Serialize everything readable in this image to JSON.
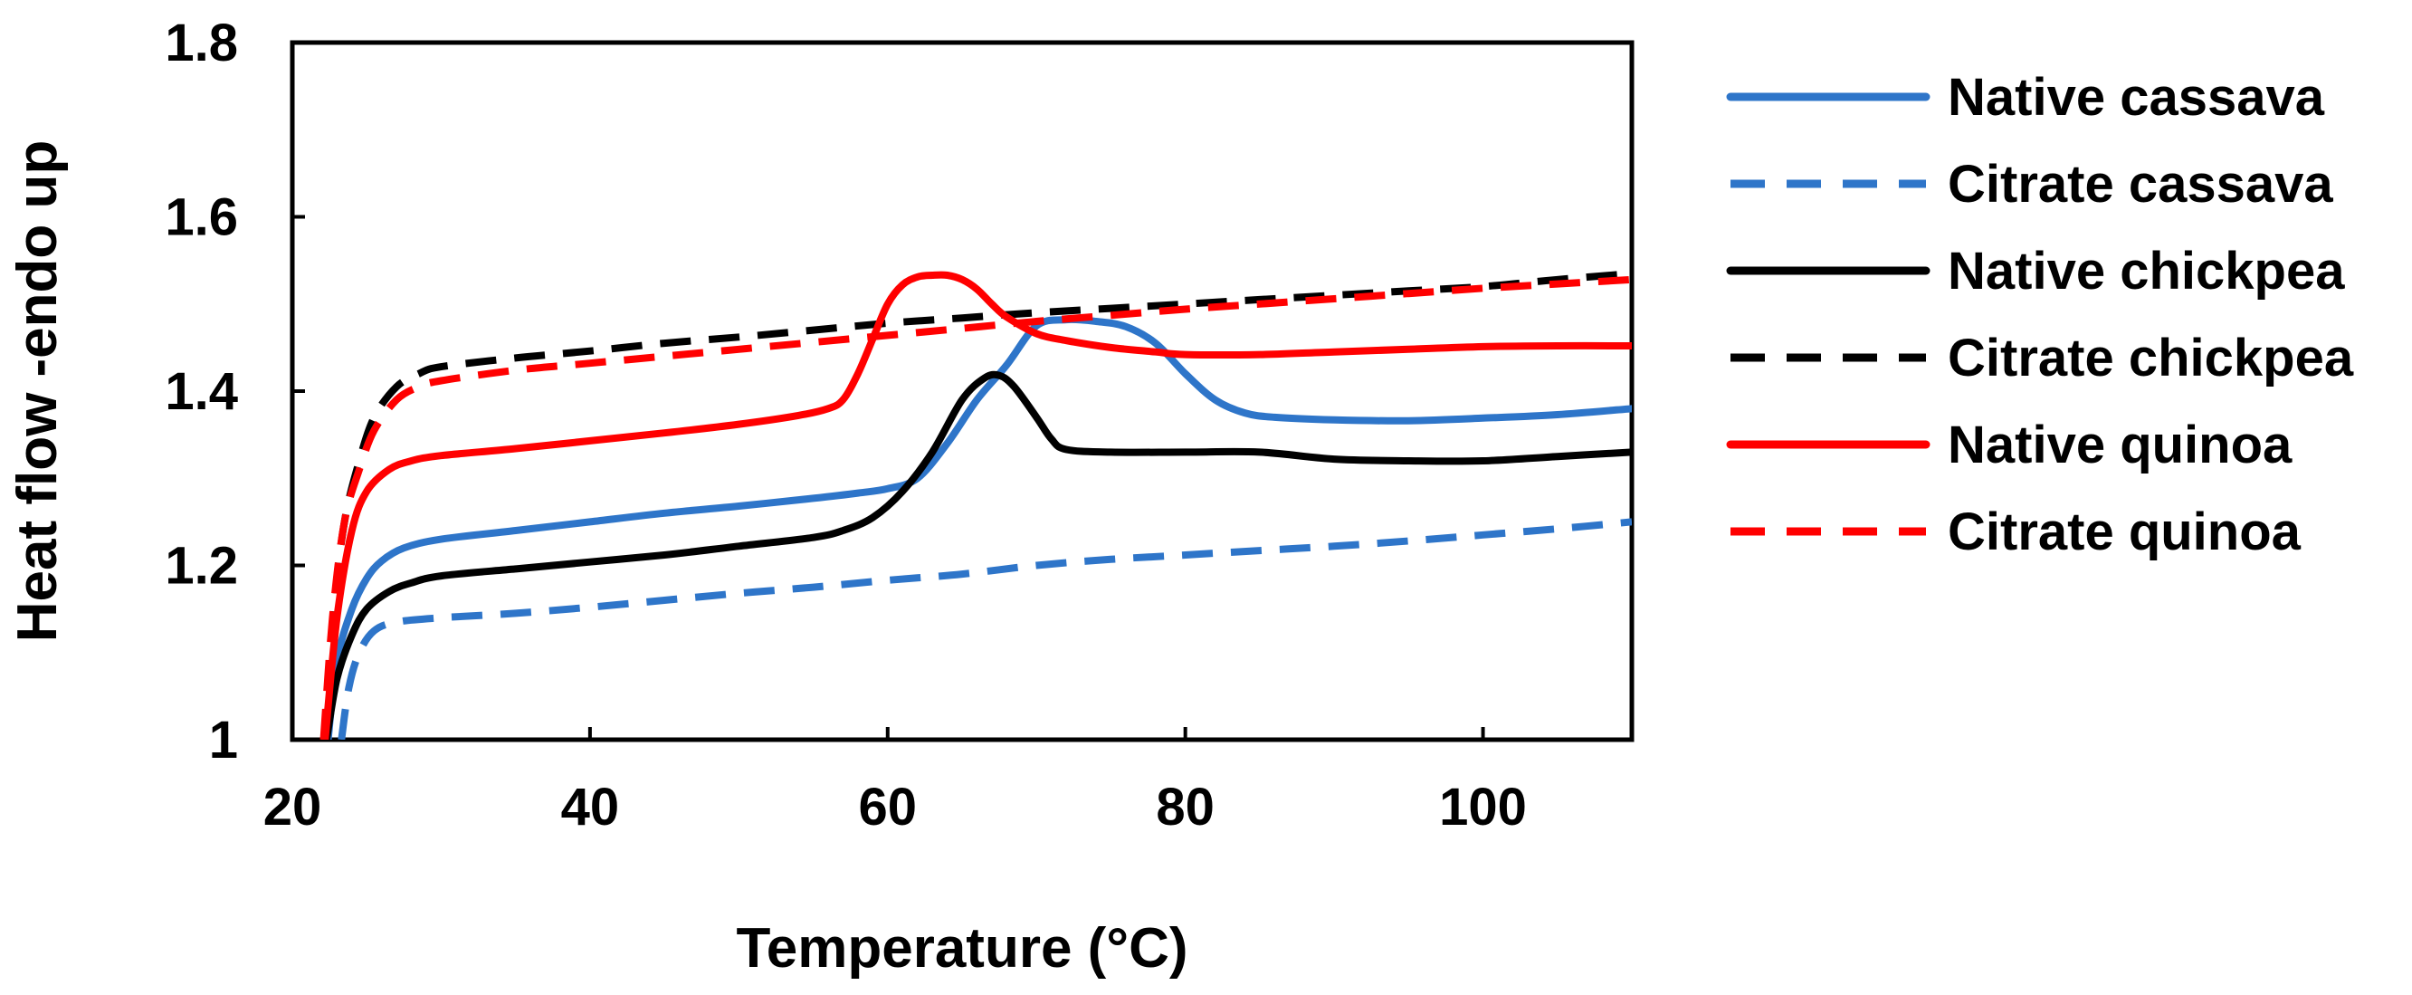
{
  "chart_data": {
    "type": "line",
    "title": "",
    "xlabel": "Temperature (°C)",
    "ylabel": "Heat flow -endo up",
    "xlim": [
      20,
      110
    ],
    "ylim": [
      1,
      1.8
    ],
    "xticks": [
      20,
      40,
      60,
      80,
      100
    ],
    "xtick_labels": [
      "20",
      "40",
      "60",
      "80",
      "100"
    ],
    "yticks": [
      1,
      1.2,
      1.4,
      1.6,
      1.8
    ],
    "ytick_labels": [
      "1",
      "1.2",
      "1.4",
      "1.6",
      "1.8"
    ],
    "grid": false,
    "legend_position": "right",
    "series": [
      {
        "name": "Native cassava",
        "color": "#2E75C9",
        "dash": "solid",
        "points": [
          [
            22.4,
            1.0
          ],
          [
            23.0,
            1.09
          ],
          [
            24.0,
            1.15
          ],
          [
            25.0,
            1.185
          ],
          [
            26.0,
            1.205
          ],
          [
            27.5,
            1.22
          ],
          [
            30,
            1.23
          ],
          [
            35,
            1.24
          ],
          [
            40,
            1.25
          ],
          [
            45,
            1.26
          ],
          [
            50,
            1.268
          ],
          [
            55,
            1.277
          ],
          [
            58,
            1.283
          ],
          [
            60,
            1.288
          ],
          [
            62,
            1.3
          ],
          [
            64,
            1.34
          ],
          [
            66,
            1.39
          ],
          [
            68,
            1.43
          ],
          [
            70,
            1.475
          ],
          [
            72,
            1.482
          ],
          [
            74,
            1.48
          ],
          [
            76,
            1.474
          ],
          [
            78,
            1.455
          ],
          [
            80,
            1.42
          ],
          [
            82,
            1.39
          ],
          [
            84,
            1.375
          ],
          [
            86,
            1.37
          ],
          [
            90,
            1.367
          ],
          [
            95,
            1.366
          ],
          [
            100,
            1.369
          ],
          [
            105,
            1.373
          ],
          [
            110,
            1.38
          ]
        ]
      },
      {
        "name": "Citrate cassava",
        "color": "#2E75C9",
        "dash": "dashed",
        "points": [
          [
            23.3,
            1.0
          ],
          [
            23.8,
            1.06
          ],
          [
            24.5,
            1.1
          ],
          [
            25.5,
            1.125
          ],
          [
            27,
            1.135
          ],
          [
            30,
            1.14
          ],
          [
            35,
            1.145
          ],
          [
            40,
            1.152
          ],
          [
            45,
            1.16
          ],
          [
            50,
            1.168
          ],
          [
            55,
            1.175
          ],
          [
            60,
            1.183
          ],
          [
            65,
            1.19
          ],
          [
            70,
            1.2
          ],
          [
            75,
            1.207
          ],
          [
            80,
            1.212
          ],
          [
            85,
            1.217
          ],
          [
            90,
            1.222
          ],
          [
            95,
            1.228
          ],
          [
            100,
            1.235
          ],
          [
            105,
            1.242
          ],
          [
            110,
            1.25
          ]
        ]
      },
      {
        "name": "Native chickpea",
        "color": "#000000",
        "dash": "solid",
        "points": [
          [
            22.3,
            1.0
          ],
          [
            23.0,
            1.07
          ],
          [
            24.0,
            1.12
          ],
          [
            25.0,
            1.15
          ],
          [
            26.5,
            1.17
          ],
          [
            28,
            1.18
          ],
          [
            30,
            1.188
          ],
          [
            35,
            1.196
          ],
          [
            40,
            1.204
          ],
          [
            45,
            1.212
          ],
          [
            50,
            1.222
          ],
          [
            55,
            1.232
          ],
          [
            57,
            1.24
          ],
          [
            59,
            1.255
          ],
          [
            61,
            1.285
          ],
          [
            63,
            1.33
          ],
          [
            65,
            1.39
          ],
          [
            66.5,
            1.415
          ],
          [
            67.5,
            1.418
          ],
          [
            68.5,
            1.405
          ],
          [
            70,
            1.37
          ],
          [
            71,
            1.345
          ],
          [
            72,
            1.333
          ],
          [
            75,
            1.33
          ],
          [
            80,
            1.33
          ],
          [
            85,
            1.33
          ],
          [
            90,
            1.322
          ],
          [
            95,
            1.32
          ],
          [
            100,
            1.32
          ],
          [
            105,
            1.325
          ],
          [
            110,
            1.33
          ]
        ]
      },
      {
        "name": "Citrate chickpea",
        "color": "#000000",
        "dash": "dashed",
        "points": [
          [
            22.2,
            1.0
          ],
          [
            22.8,
            1.15
          ],
          [
            23.5,
            1.25
          ],
          [
            24.5,
            1.32
          ],
          [
            25.5,
            1.37
          ],
          [
            27,
            1.405
          ],
          [
            28.5,
            1.42
          ],
          [
            30,
            1.428
          ],
          [
            35,
            1.438
          ],
          [
            40,
            1.446
          ],
          [
            45,
            1.455
          ],
          [
            50,
            1.462
          ],
          [
            55,
            1.47
          ],
          [
            60,
            1.478
          ],
          [
            65,
            1.484
          ],
          [
            70,
            1.49
          ],
          [
            75,
            1.495
          ],
          [
            80,
            1.5
          ],
          [
            85,
            1.505
          ],
          [
            90,
            1.51
          ],
          [
            95,
            1.515
          ],
          [
            100,
            1.52
          ],
          [
            105,
            1.528
          ],
          [
            110,
            1.535
          ]
        ]
      },
      {
        "name": "Native quinoa",
        "color": "#FF0000",
        "dash": "solid",
        "points": [
          [
            22.2,
            1.0
          ],
          [
            23.0,
            1.14
          ],
          [
            24.0,
            1.24
          ],
          [
            25.0,
            1.285
          ],
          [
            26.5,
            1.31
          ],
          [
            28,
            1.32
          ],
          [
            30,
            1.326
          ],
          [
            35,
            1.334
          ],
          [
            40,
            1.343
          ],
          [
            45,
            1.352
          ],
          [
            50,
            1.362
          ],
          [
            54,
            1.372
          ],
          [
            56,
            1.38
          ],
          [
            57,
            1.39
          ],
          [
            58,
            1.42
          ],
          [
            59,
            1.46
          ],
          [
            60,
            1.5
          ],
          [
            61,
            1.522
          ],
          [
            62,
            1.531
          ],
          [
            63,
            1.533
          ],
          [
            64,
            1.533
          ],
          [
            65,
            1.528
          ],
          [
            66,
            1.517
          ],
          [
            67,
            1.5
          ],
          [
            68,
            1.485
          ],
          [
            70,
            1.466
          ],
          [
            72,
            1.458
          ],
          [
            75,
            1.45
          ],
          [
            78,
            1.445
          ],
          [
            80,
            1.442
          ],
          [
            85,
            1.442
          ],
          [
            90,
            1.445
          ],
          [
            95,
            1.448
          ],
          [
            100,
            1.451
          ],
          [
            105,
            1.452
          ],
          [
            110,
            1.452
          ]
        ]
      },
      {
        "name": "Citrate quinoa",
        "color": "#FF0000",
        "dash": "dashed",
        "points": [
          [
            22.1,
            1.0
          ],
          [
            22.7,
            1.14
          ],
          [
            23.5,
            1.25
          ],
          [
            24.5,
            1.31
          ],
          [
            25.5,
            1.355
          ],
          [
            27,
            1.39
          ],
          [
            28.5,
            1.405
          ],
          [
            30,
            1.412
          ],
          [
            35,
            1.424
          ],
          [
            40,
            1.432
          ],
          [
            45,
            1.44
          ],
          [
            50,
            1.448
          ],
          [
            55,
            1.456
          ],
          [
            60,
            1.464
          ],
          [
            65,
            1.472
          ],
          [
            70,
            1.48
          ],
          [
            75,
            1.487
          ],
          [
            80,
            1.494
          ],
          [
            85,
            1.5
          ],
          [
            90,
            1.506
          ],
          [
            95,
            1.512
          ],
          [
            100,
            1.518
          ],
          [
            105,
            1.523
          ],
          [
            110,
            1.528
          ]
        ]
      }
    ]
  }
}
